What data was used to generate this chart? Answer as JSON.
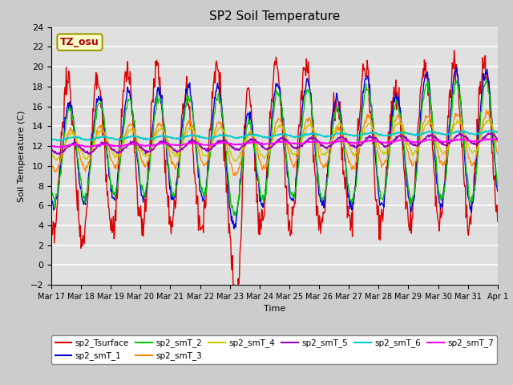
{
  "title": "SP2 Soil Temperature",
  "ylabel": "Soil Temperature (C)",
  "xlabel": "Time",
  "annotation": "TZ_osu",
  "ylim": [
    -2,
    24
  ],
  "fig_bg": "#cccccc",
  "plot_bg": "#e0e0e0",
  "series_colors": {
    "sp2_Tsurface": "#dd0000",
    "sp2_smT_1": "#0000dd",
    "sp2_smT_2": "#00cc00",
    "sp2_smT_3": "#ff8800",
    "sp2_smT_4": "#cccc00",
    "sp2_smT_5": "#9900bb",
    "sp2_smT_6": "#00cccc",
    "sp2_smT_7": "#ff00ff"
  },
  "tick_labels": [
    "Mar 17",
    "Mar 18",
    "Mar 19",
    "Mar 20",
    "Mar 21",
    "Mar 22",
    "Mar 23",
    "Mar 24",
    "Mar 25",
    "Mar 26",
    "Mar 27",
    "Mar 28",
    "Mar 29",
    "Mar 30",
    "Mar 31",
    "Apr 1"
  ],
  "tick_positions": [
    0,
    1,
    2,
    3,
    4,
    5,
    6,
    7,
    8,
    9,
    10,
    11,
    12,
    13,
    14,
    15
  ],
  "yticks": [
    -2,
    0,
    2,
    4,
    6,
    8,
    10,
    12,
    14,
    16,
    18,
    20,
    22,
    24
  ],
  "n_points": 720,
  "total_days": 15
}
